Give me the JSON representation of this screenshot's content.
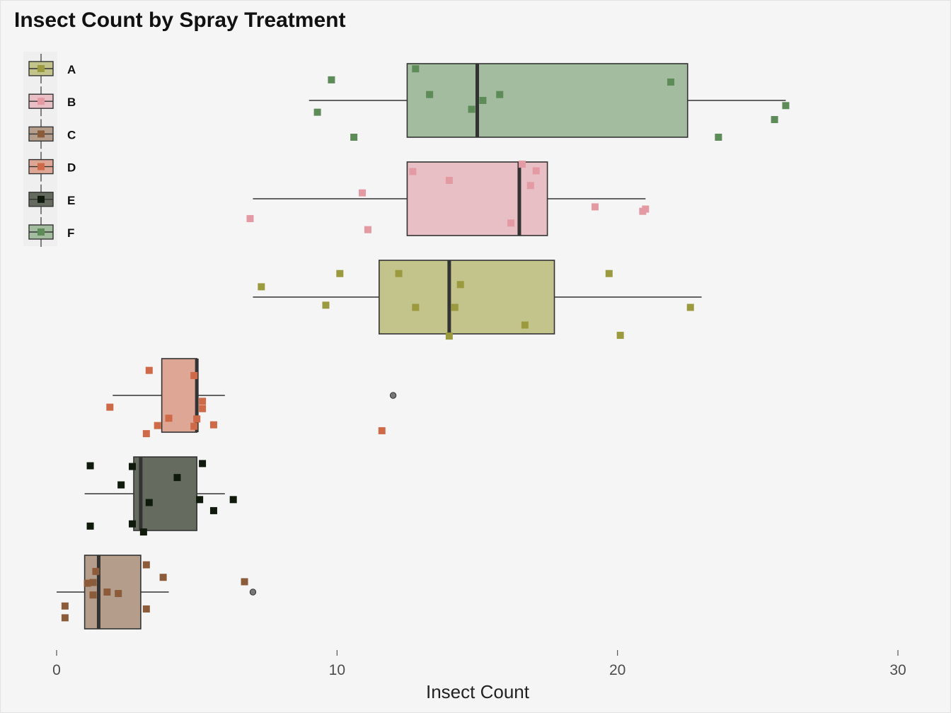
{
  "chart_data": {
    "type": "boxplot",
    "title": "Insect Count by Spray Treatment",
    "xlabel": "Insect Count",
    "ylabel": "",
    "xlim": [
      0,
      30
    ],
    "x_ticks": [
      0,
      10,
      20,
      30
    ],
    "grid": false,
    "legend_position": "top-left",
    "legend": [
      "A",
      "B",
      "C",
      "D",
      "E",
      "F"
    ],
    "category_order_bottom_to_top": [
      "C",
      "E",
      "D",
      "A",
      "B",
      "F"
    ],
    "series": [
      {
        "name": "A",
        "fill": "#c3c48b",
        "point_color": "#9c9a3e",
        "box": {
          "whisker_low": 7,
          "q1": 11.5,
          "median": 14,
          "q3": 17.75,
          "whisker_high": 23
        },
        "outliers": [],
        "points": [
          {
            "x": 14.2,
            "j": -0.14
          },
          {
            "x": 12.2,
            "j": 0.32
          },
          {
            "x": 10.1,
            "j": 0.32
          },
          {
            "x": 7.3,
            "j": 0.14
          },
          {
            "x": 14.4,
            "j": 0.17
          },
          {
            "x": 9.6,
            "j": -0.11
          },
          {
            "x": 12.8,
            "j": -0.14
          },
          {
            "x": 16.7,
            "j": -0.38
          },
          {
            "x": 19.7,
            "j": 0.32
          },
          {
            "x": 20.1,
            "j": -0.52
          },
          {
            "x": 14.0,
            "j": -0.53
          },
          {
            "x": 22.6,
            "j": -0.14
          }
        ]
      },
      {
        "name": "B",
        "fill": "#e8bfc4",
        "point_color": "#e39aa3",
        "box": {
          "whisker_low": 7,
          "q1": 12.5,
          "median": 16.5,
          "q3": 17.5,
          "whisker_high": 21
        },
        "outliers": [],
        "points": [
          {
            "x": 16.6,
            "j": 0.47
          },
          {
            "x": 17.1,
            "j": 0.38
          },
          {
            "x": 12.7,
            "j": 0.37
          },
          {
            "x": 14.0,
            "j": 0.25
          },
          {
            "x": 16.9,
            "j": 0.18
          },
          {
            "x": 10.9,
            "j": 0.08
          },
          {
            "x": 19.2,
            "j": -0.11
          },
          {
            "x": 21.0,
            "j": -0.14
          },
          {
            "x": 20.9,
            "j": -0.17
          },
          {
            "x": 6.9,
            "j": -0.27
          },
          {
            "x": 16.2,
            "j": -0.33
          },
          {
            "x": 11.1,
            "j": -0.42
          }
        ]
      },
      {
        "name": "C",
        "fill": "#b49d8b",
        "point_color": "#8c5c3a",
        "box": {
          "whisker_low": 0,
          "q1": 1,
          "median": 1.5,
          "q3": 3,
          "whisker_high": 4
        },
        "outliers": [
          7
        ],
        "points": [
          {
            "x": 3.2,
            "j": 0.37
          },
          {
            "x": 1.4,
            "j": 0.28
          },
          {
            "x": 3.8,
            "j": 0.2
          },
          {
            "x": 1.3,
            "j": 0.13
          },
          {
            "x": 1.1,
            "j": 0.12
          },
          {
            "x": 6.7,
            "j": 0.14
          },
          {
            "x": 1.8,
            "j": 0.0
          },
          {
            "x": 2.2,
            "j": -0.02
          },
          {
            "x": 1.3,
            "j": -0.04
          },
          {
            "x": 0.3,
            "j": -0.19
          },
          {
            "x": 3.2,
            "j": -0.23
          },
          {
            "x": 0.3,
            "j": -0.35
          }
        ]
      },
      {
        "name": "D",
        "fill": "#dea694",
        "point_color": "#cf6a48",
        "box": {
          "whisker_low": 2,
          "q1": 3.75,
          "median": 5,
          "q3": 5,
          "whisker_high": 6
        },
        "outliers": [
          12
        ],
        "points": [
          {
            "x": 3.3,
            "j": 0.34
          },
          {
            "x": 4.9,
            "j": 0.27
          },
          {
            "x": 1.9,
            "j": -0.16
          },
          {
            "x": 5.2,
            "j": -0.08
          },
          {
            "x": 5.2,
            "j": -0.18
          },
          {
            "x": 4.0,
            "j": -0.31
          },
          {
            "x": 5.0,
            "j": -0.32
          },
          {
            "x": 3.6,
            "j": -0.41
          },
          {
            "x": 5.6,
            "j": -0.4
          },
          {
            "x": 4.9,
            "j": -0.42
          },
          {
            "x": 3.2,
            "j": -0.52
          },
          {
            "x": 11.6,
            "j": -0.48
          }
        ]
      },
      {
        "name": "E",
        "fill": "#666b60",
        "point_color": "#0f1a0c",
        "box": {
          "whisker_low": 1,
          "q1": 2.75,
          "median": 3,
          "q3": 5,
          "whisker_high": 6
        },
        "outliers": [],
        "points": [
          {
            "x": 5.2,
            "j": 0.41
          },
          {
            "x": 1.2,
            "j": 0.38
          },
          {
            "x": 2.7,
            "j": 0.37
          },
          {
            "x": 4.3,
            "j": 0.22
          },
          {
            "x": 2.3,
            "j": 0.12
          },
          {
            "x": 5.1,
            "j": -0.08
          },
          {
            "x": 6.3,
            "j": -0.08
          },
          {
            "x": 3.3,
            "j": -0.12
          },
          {
            "x": 5.6,
            "j": -0.23
          },
          {
            "x": 2.7,
            "j": -0.41
          },
          {
            "x": 1.2,
            "j": -0.44
          },
          {
            "x": 3.1,
            "j": -0.52
          }
        ]
      },
      {
        "name": "F",
        "fill": "#a3bb9f",
        "point_color": "#5e8c59",
        "box": {
          "whisker_low": 9,
          "q1": 12.5,
          "median": 15,
          "q3": 22.5,
          "whisker_high": 26
        },
        "outliers": [],
        "points": [
          {
            "x": 12.8,
            "j": 0.43
          },
          {
            "x": 9.8,
            "j": 0.28
          },
          {
            "x": 21.9,
            "j": 0.25
          },
          {
            "x": 13.3,
            "j": 0.08
          },
          {
            "x": 15.8,
            "j": 0.08
          },
          {
            "x": 15.2,
            "j": 0.0
          },
          {
            "x": 26.0,
            "j": -0.07
          },
          {
            "x": 14.8,
            "j": -0.12
          },
          {
            "x": 9.3,
            "j": -0.16
          },
          {
            "x": 25.6,
            "j": -0.26
          },
          {
            "x": 10.6,
            "j": -0.5
          },
          {
            "x": 23.6,
            "j": -0.5
          }
        ]
      }
    ]
  }
}
